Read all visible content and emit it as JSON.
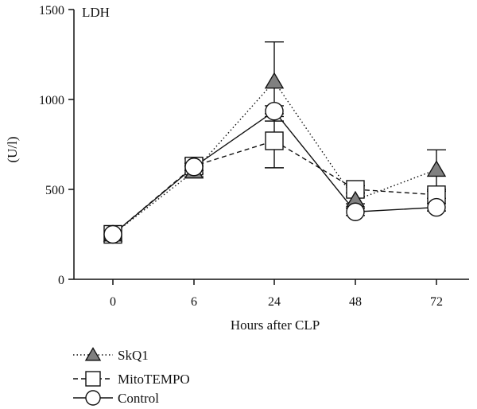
{
  "chart_data": {
    "type": "line",
    "title": "LDH",
    "xlabel": "Hours after CLP",
    "ylabel": "(U/l)",
    "categories": [
      "0",
      "6",
      "24",
      "48",
      "72"
    ],
    "ylim": [
      0,
      1500
    ],
    "yticks": [
      0,
      500,
      1000,
      1500
    ],
    "grid": false,
    "legend_position": "bottom-left",
    "series": [
      {
        "name": "SkQ1",
        "marker": "triangle",
        "line_style": "dotted",
        "fill": "#808080",
        "values": [
          250,
          600,
          1100,
          440,
          610
        ],
        "error": [
          0,
          30,
          220,
          20,
          110
        ]
      },
      {
        "name": "MitoTEMPO",
        "marker": "square",
        "line_style": "dashed",
        "fill": "#ffffff",
        "values": [
          250,
          630,
          770,
          500,
          470
        ],
        "error": [
          0,
          40,
          150,
          20,
          20
        ]
      },
      {
        "name": "Control",
        "marker": "circle",
        "line_style": "solid",
        "fill": "#ffffff",
        "values": [
          250,
          625,
          935,
          375,
          400
        ],
        "error": [
          0,
          20,
          30,
          20,
          20
        ]
      }
    ]
  }
}
